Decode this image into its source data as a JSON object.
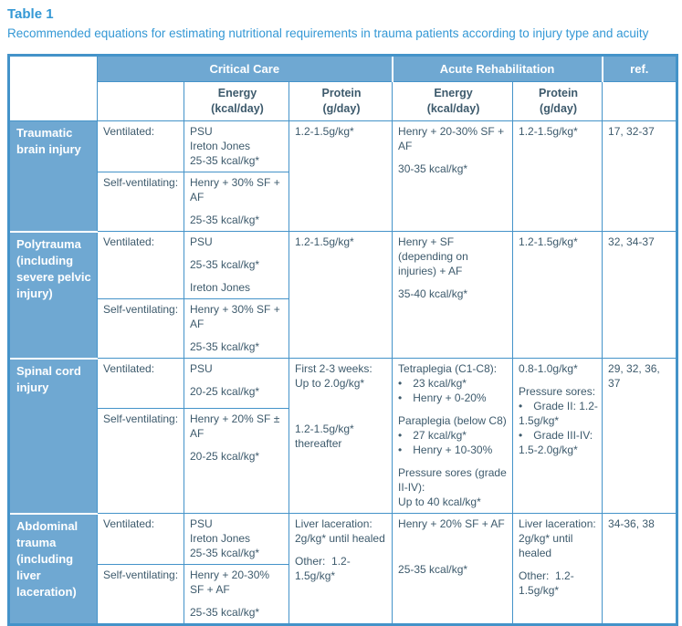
{
  "title": "Table 1",
  "subtitle": "Recommended equations for estimating nutritional requirements in trauma patients according to injury type and acuity",
  "colors": {
    "header_fill": "#6FA8D2",
    "border_blue": "#4493C9",
    "title_blue": "#3498D5",
    "body_text": "#3D5A6C",
    "header_text": "#FFFFFF"
  },
  "table": {
    "group_headers": {
      "critical_care": "Critical Care",
      "acute_rehabilitation": "Acute Rehabilitation",
      "ref": "ref."
    },
    "sub_headers": {
      "cc_energy": "Energy\n(kcal/day)",
      "cc_protein": "Protein\n(g/day)",
      "ar_energy": "Energy\n(kcal/day)",
      "ar_protein": "Protein\n(g/day)"
    },
    "rows": [
      {
        "injury": "Traumatic brain injury",
        "ventilated_label": "Ventilated:",
        "self_ventilating_label": "Self-ventilating:",
        "cc_energy_ventilated": [
          "PSU\nIreton Jones\n25-35 kcal/kg*"
        ],
        "cc_energy_self_ventilating": [
          "Henry + 30% SF + AF",
          "25-35 kcal/kg*"
        ],
        "cc_protein": [
          "1.2-1.5g/kg*"
        ],
        "ar_energy": [
          "Henry + 20-30% SF + AF",
          "30-35 kcal/kg*"
        ],
        "ar_protein": [
          "1.2-1.5g/kg*"
        ],
        "ref": "17, 32-37"
      },
      {
        "injury": "Polytrauma (including severe pelvic injury)",
        "ventilated_label": "Ventilated:",
        "self_ventilating_label": "Self-ventilating:",
        "cc_energy_ventilated": [
          "PSU",
          "25-35 kcal/kg*",
          "Ireton Jones"
        ],
        "cc_energy_self_ventilating": [
          "Henry + 30% SF + AF",
          "25-35 kcal/kg*"
        ],
        "cc_protein": [
          "1.2-1.5g/kg*"
        ],
        "ar_energy": [
          "Henry + SF (depending on injuries) + AF",
          "35-40 kcal/kg*"
        ],
        "ar_protein": [
          "1.2-1.5g/kg*"
        ],
        "ref": "32, 34-37"
      },
      {
        "injury": "Spinal cord injury",
        "ventilated_label": "Ventilated:",
        "self_ventilating_label": "Self-ventilating:",
        "cc_energy_ventilated": [
          "PSU",
          "20-25 kcal/kg*"
        ],
        "cc_energy_self_ventilating": [
          "Henry + 20% SF ± AF",
          "20-25 kcal/kg*"
        ],
        "cc_protein": [
          "First 2-3 weeks:\nUp to 2.0g/kg*",
          "",
          "1.2-1.5g/kg*\nthereafter"
        ],
        "ar_energy": [
          "Tetraplegia (C1-C8):\n• 23 kcal/kg*\n• Henry + 0-20%",
          "Paraplegia (below C8)\n• 27 kcal/kg*\n• Henry + 10-30%",
          "Pressure sores (grade II-IV):\nUp to 40 kcal/kg*"
        ],
        "ar_protein": [
          "0.8-1.0g/kg*",
          "Pressure sores:\n• Grade II: 1.2-1.5g/kg*\n• Grade III-IV: 1.5-2.0g/kg*"
        ],
        "ref": "29, 32, 36, 37"
      },
      {
        "injury": "Abdominal trauma (including liver laceration)",
        "ventilated_label": "Ventilated:",
        "self_ventilating_label": "Self-ventilating:",
        "cc_energy_ventilated": [
          "PSU\nIreton Jones\n25-35 kcal/kg*"
        ],
        "cc_energy_self_ventilating": [
          "Henry + 20-30% SF + AF",
          "25-35 kcal/kg*"
        ],
        "cc_protein": [
          "Liver laceration:\n2g/kg* until healed",
          "Other:  1.2-1.5g/kg*"
        ],
        "ar_energy": [
          "Henry + 20% SF + AF",
          "",
          "25-35 kcal/kg*"
        ],
        "ar_protein": [
          "Liver laceration:\n2g/kg* until healed",
          "Other:  1.2-1.5g/kg*"
        ],
        "ref": "34-36, 38"
      }
    ]
  }
}
